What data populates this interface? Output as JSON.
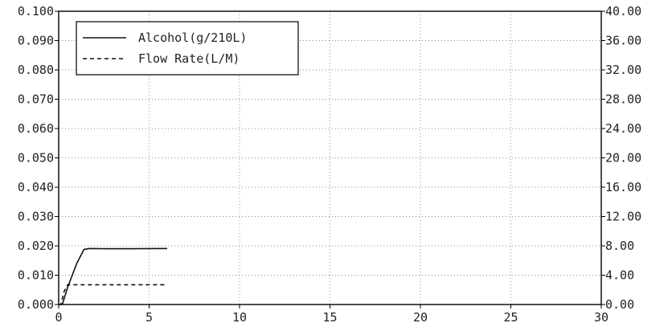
{
  "chart_data": {
    "type": "line",
    "grid": true,
    "legend_position": "top-left",
    "x_axis": {
      "range": [
        0,
        30
      ],
      "ticks": [
        0,
        5,
        10,
        15,
        20,
        25,
        30
      ],
      "tick_labels": [
        "0",
        "5",
        "10",
        "15",
        "20",
        "25",
        "30"
      ]
    },
    "y_axis_left": {
      "range": [
        0,
        0.1
      ],
      "ticks": [
        0,
        0.01,
        0.02,
        0.03,
        0.04,
        0.05,
        0.06,
        0.07,
        0.08,
        0.09,
        0.1
      ],
      "tick_labels": [
        "0.000",
        "0.010",
        "0.020",
        "0.030",
        "0.040",
        "0.050",
        "0.060",
        "0.070",
        "0.080",
        "0.090",
        "0.100"
      ]
    },
    "y_axis_right": {
      "range": [
        0,
        40
      ],
      "ticks": [
        0,
        4,
        8,
        12,
        16,
        20,
        24,
        28,
        32,
        36,
        40
      ],
      "tick_labels": [
        "0.00",
        "4.00",
        "8.00",
        "12.00",
        "16.00",
        "20.00",
        "24.00",
        "28.00",
        "32.00",
        "36.00",
        "40.00"
      ]
    },
    "series": [
      {
        "name": "Alcohol(g/210L)",
        "axis": "left",
        "style": "solid",
        "color": "#111111",
        "x": [
          0.0,
          0.2,
          0.5,
          1.0,
          1.4,
          1.7,
          2.5,
          4.0,
          6.0
        ],
        "y": [
          0.0,
          0.0,
          0.006,
          0.014,
          0.0188,
          0.0191,
          0.019,
          0.019,
          0.0191
        ]
      },
      {
        "name": "Flow Rate(L/M)",
        "axis": "right",
        "style": "dashed",
        "color": "#111111",
        "x": [
          0.0,
          0.12,
          0.3,
          0.5,
          1.0,
          3.0,
          6.0
        ],
        "y": [
          0.0,
          0.0,
          1.8,
          2.7,
          2.7,
          2.7,
          2.7
        ]
      }
    ]
  }
}
